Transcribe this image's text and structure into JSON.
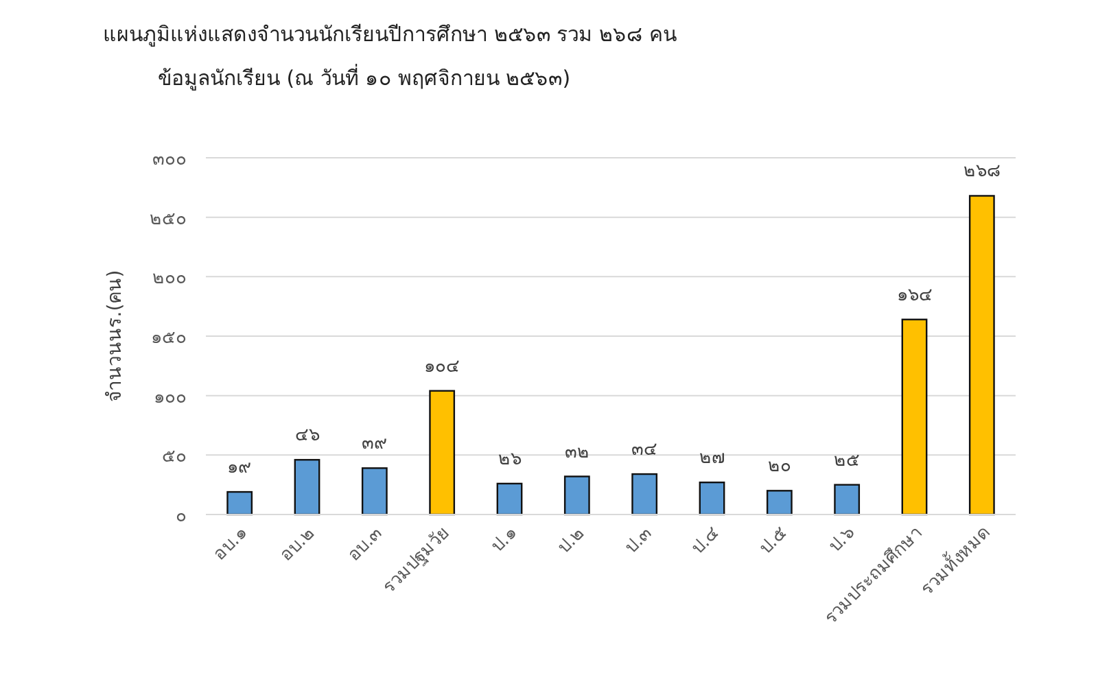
{
  "chart_data": {
    "type": "bar",
    "title": "แผนภูมิแห่งแสดงจำนวนนักเรียนปีการศึกษา ๒๕๖๓  รวม  ๒๖๘  คน",
    "subtitle": "ข้อมูลนักเรียน (ณ  วันที่   ๑๐   พฤศจิกายน  ๒๕๖๓)",
    "ylabel": "จำนวนนร.(คน)",
    "categories": [
      "อบ.๑",
      "อบ.๒",
      "อบ.๓",
      "รวมปฐมวัย",
      "ป.๑",
      "ป.๒",
      "ป.๓",
      "ป.๔",
      "ป.๕",
      "ป.๖",
      "รวมประถมศึกษา",
      "รวมทั้งหมด"
    ],
    "values": [
      19,
      46,
      39,
      104,
      26,
      32,
      34,
      27,
      20,
      25,
      164,
      268
    ],
    "colors": [
      "#5b9bd5",
      "#5b9bd5",
      "#5b9bd5",
      "#ffc000",
      "#5b9bd5",
      "#5b9bd5",
      "#5b9bd5",
      "#5b9bd5",
      "#5b9bd5",
      "#5b9bd5",
      "#ffc000",
      "#ffc000"
    ],
    "value_labels": [
      "๑๙",
      "๔๖",
      "๓๙",
      "๑๐๔",
      "๒๖",
      "๓๒",
      "๓๔",
      "๒๗",
      "๒๐",
      "๒๕",
      "๑๖๔",
      "๒๖๘"
    ],
    "ylim": [
      0,
      300
    ],
    "yticks": [
      {
        "value": 0,
        "label": "๐"
      },
      {
        "value": 50,
        "label": "๕๐"
      },
      {
        "value": 100,
        "label": "๑๐๐"
      },
      {
        "value": 150,
        "label": "๑๕๐"
      },
      {
        "value": 200,
        "label": "๒๐๐"
      },
      {
        "value": 250,
        "label": "๒๕๐"
      },
      {
        "value": 300,
        "label": "๓๐๐"
      }
    ],
    "grid": "y"
  }
}
